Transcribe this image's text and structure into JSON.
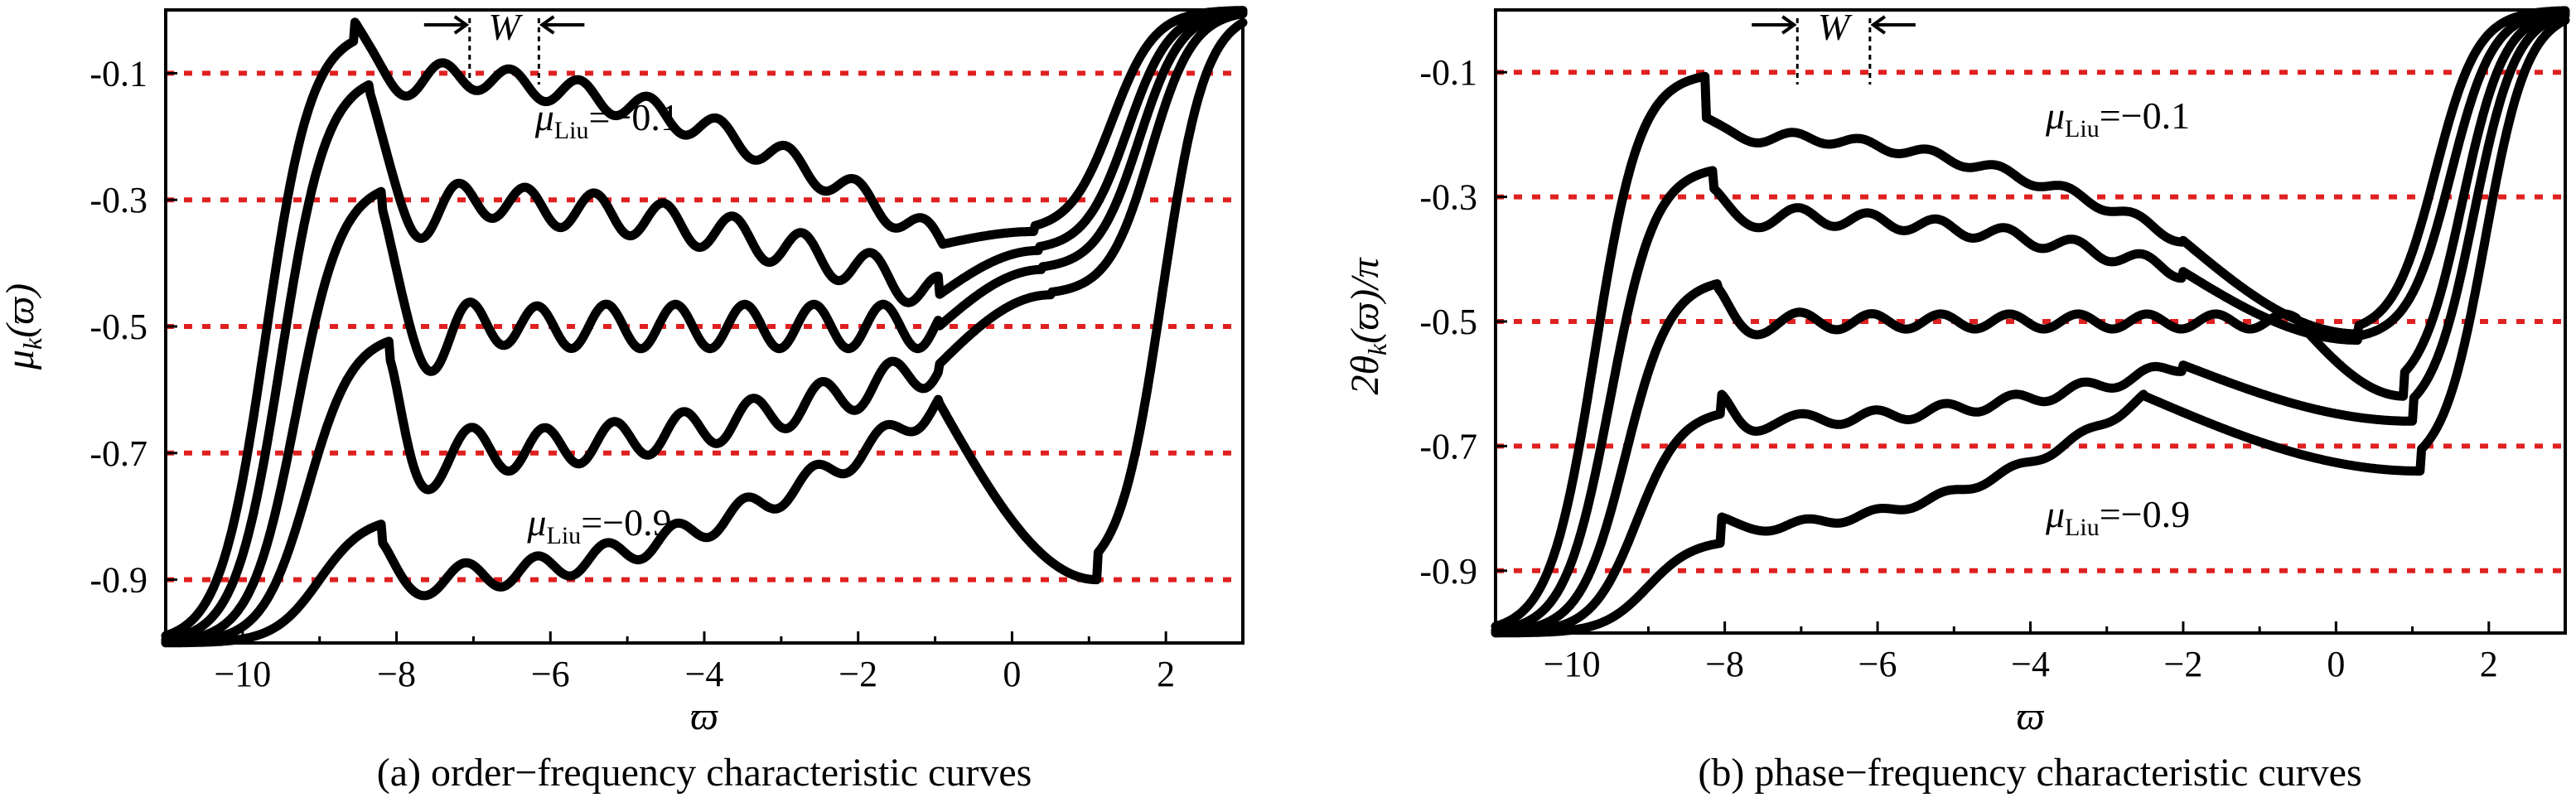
{
  "chart_data": [
    {
      "panel_id": "a",
      "type": "line",
      "caption": "(a) order−frequency characteristic curves",
      "xlabel": "ϖ",
      "ylabel_html": "μ",
      "ylabel_sub": "k",
      "ylabel_tail": "(ϖ)",
      "xlim": [
        -11,
        3
      ],
      "ylim": [
        -1.0,
        0.0
      ],
      "xticks": [
        -10,
        -8,
        -6,
        -4,
        -2,
        0,
        2
      ],
      "xtick_labels": [
        "−10",
        "−8",
        "−6",
        "−4",
        "−2",
        "0",
        "2"
      ],
      "yticks": [
        -0.1,
        -0.3,
        -0.5,
        -0.7,
        -0.9
      ],
      "ytick_labels": [
        "-0.1",
        "-0.3",
        "-0.5",
        "-0.7",
        "-0.9"
      ],
      "reference_lines": [
        -0.1,
        -0.3,
        -0.5,
        -0.7,
        -0.9
      ],
      "annotation_top": {
        "symbol": "μ",
        "sub": "Liu",
        "value": "=−0.1",
        "x": -6.2,
        "y": -0.19
      },
      "annotation_bottom": {
        "symbol": "μ",
        "sub": "Liu",
        "value": "=−0.9",
        "x": -6.3,
        "y": -0.83
      },
      "w_marker": {
        "label": "W",
        "x1": -7.05,
        "x2": -6.15,
        "y": -0.02
      },
      "series": [
        {
          "level": -0.1,
          "rise_center": -9.7,
          "peak_x": -8.55,
          "peak_y": -0.03,
          "dip_x": -7.8,
          "dip_y": -0.18,
          "wiggle_amp": 0.022,
          "wiggle_end": -0.9,
          "ripple_end_y": -0.37,
          "final_x": 0.3,
          "final_y": -0.35,
          "end_center": 1.3
        },
        {
          "level": -0.3,
          "rise_center": -9.5,
          "peak_x": -8.35,
          "peak_y": -0.1,
          "dip_x": -7.6,
          "dip_y": -0.41,
          "wiggle_amp": 0.03,
          "wiggle_end": -0.95,
          "ripple_end_y": -0.45,
          "final_x": 0.35,
          "final_y": -0.38,
          "end_center": 1.5
        },
        {
          "level": -0.5,
          "rise_center": -9.3,
          "peak_x": -8.2,
          "peak_y": -0.27,
          "dip_x": -7.5,
          "dip_y": -0.62,
          "wiggle_amp": 0.035,
          "wiggle_end": -0.95,
          "ripple_end_y": -0.5,
          "final_x": 0.4,
          "final_y": -0.41,
          "end_center": 1.65
        },
        {
          "level": -0.7,
          "rise_center": -9.15,
          "peak_x": -8.1,
          "peak_y": -0.51,
          "dip_x": -7.6,
          "dip_y": -0.79,
          "wiggle_amp": 0.03,
          "wiggle_end": -0.95,
          "ripple_end_y": -0.56,
          "final_x": 0.5,
          "final_y": -0.45,
          "end_center": 1.8
        },
        {
          "level": -0.9,
          "rise_center": -9.0,
          "peak_x": -8.2,
          "peak_y": -0.8,
          "dip_x": -7.7,
          "dip_y": -0.91,
          "wiggle_amp": 0.02,
          "wiggle_end": -0.95,
          "ripple_end_y": -0.62,
          "final_x": 1.1,
          "final_y": -0.9,
          "end_center": 1.95
        }
      ]
    },
    {
      "panel_id": "b",
      "type": "line",
      "caption": "(b) phase−frequency characteristic curves",
      "xlabel": "ϖ",
      "ylabel_html": "2θ",
      "ylabel_sub": "k",
      "ylabel_tail": "(ϖ)/π",
      "xlim": [
        -11,
        3
      ],
      "ylim": [
        -1.0,
        0.0
      ],
      "xticks": [
        -10,
        -8,
        -6,
        -4,
        -2,
        0,
        2
      ],
      "xtick_labels": [
        "−10",
        "−8",
        "−6",
        "−4",
        "−2",
        "0",
        "2"
      ],
      "yticks": [
        -0.1,
        -0.3,
        -0.5,
        -0.7,
        -0.9
      ],
      "ytick_labels": [
        "-0.1",
        "-0.3",
        "-0.5",
        "-0.7",
        "-0.9"
      ],
      "reference_lines": [
        -0.1,
        -0.3,
        -0.5,
        -0.7,
        -0.9
      ],
      "annotation_top": {
        "symbol": "μ",
        "sub": "Liu",
        "value": "=−0.1",
        "x": -3.8,
        "y": -0.19
      },
      "annotation_bottom": {
        "symbol": "μ",
        "sub": "Liu",
        "value": "=−0.9",
        "x": -3.8,
        "y": -0.83
      },
      "w_marker": {
        "label": "W",
        "x1": -7.05,
        "x2": -6.1,
        "y": -0.02
      },
      "series": [
        {
          "level": -0.1,
          "rise_center": -9.7,
          "peak_x": -8.25,
          "peak_y": -0.1,
          "dip_x": -7.5,
          "dip_y": -0.15,
          "wiggle_amp": 0.008,
          "mid_y": -0.2,
          "wiggle_end": -2.0,
          "ripple_end_y": -0.37,
          "final_x": 0.3,
          "final_y": -0.52,
          "end_center": 1.3
        },
        {
          "level": -0.3,
          "rise_center": -9.5,
          "peak_x": -8.15,
          "peak_y": -0.25,
          "dip_x": -7.6,
          "dip_y": -0.33,
          "wiggle_amp": 0.012,
          "mid_y": -0.33,
          "wiggle_end": -2.0,
          "ripple_end_y": -0.42,
          "final_x": 0.3,
          "final_y": -0.53,
          "end_center": 1.5
        },
        {
          "level": -0.5,
          "rise_center": -9.3,
          "peak_x": -8.1,
          "peak_y": -0.43,
          "dip_x": -7.6,
          "dip_y": -0.53,
          "wiggle_amp": 0.012,
          "mid_y": -0.5,
          "wiggle_end": -0.5,
          "ripple_end_y": -0.5,
          "final_x": 0.9,
          "final_y": -0.62,
          "end_center": 1.65
        },
        {
          "level": -0.7,
          "rise_center": -9.15,
          "peak_x": -8.05,
          "peak_y": -0.64,
          "dip_x": -7.6,
          "dip_y": -0.72,
          "wiggle_amp": 0.01,
          "mid_y": -0.66,
          "wiggle_end": -2.0,
          "ripple_end_y": -0.57,
          "final_x": 1.0,
          "final_y": -0.66,
          "end_center": 1.8
        },
        {
          "level": -0.9,
          "rise_center": -9.0,
          "peak_x": -8.05,
          "peak_y": -0.85,
          "dip_x": -7.5,
          "dip_y": -0.88,
          "wiggle_amp": 0.006,
          "mid_y": -0.83,
          "wiggle_end": -2.5,
          "ripple_end_y": -0.62,
          "final_x": 1.1,
          "final_y": -0.74,
          "end_center": 1.95
        }
      ]
    }
  ]
}
